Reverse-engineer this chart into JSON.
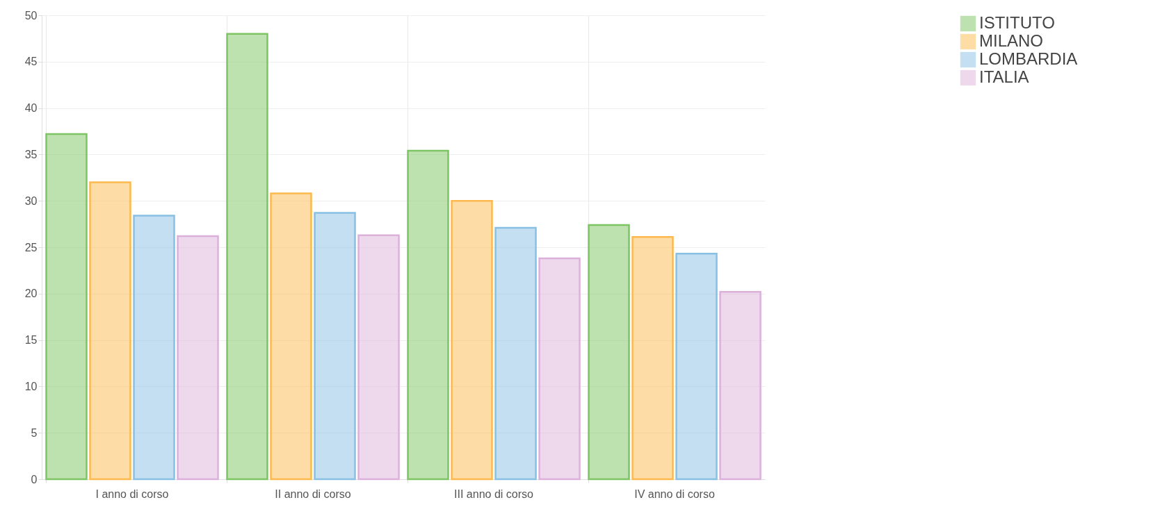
{
  "chart_data": {
    "type": "bar",
    "categories": [
      "I anno di corso",
      "II anno di corso",
      "III anno di corso",
      "IV anno di corso"
    ],
    "series": [
      {
        "name": "ISTITUTO",
        "color": "#7dc462",
        "values": [
          37.2,
          48.0,
          35.4,
          27.4
        ]
      },
      {
        "name": "MILANO",
        "color": "#fdb94e",
        "values": [
          32.0,
          30.8,
          30.0,
          26.1
        ]
      },
      {
        "name": "LOMBARDIA",
        "color": "#88c0e3",
        "values": [
          28.4,
          28.7,
          27.1,
          24.3
        ]
      },
      {
        "name": "ITALIA",
        "color": "#dbb1da",
        "values": [
          26.2,
          26.3,
          23.8,
          20.2
        ]
      }
    ],
    "ylim": [
      0,
      50
    ],
    "yticks": [
      0,
      5,
      10,
      15,
      20,
      25,
      30,
      35,
      40,
      45,
      50
    ],
    "grid": true,
    "legend": "right"
  }
}
